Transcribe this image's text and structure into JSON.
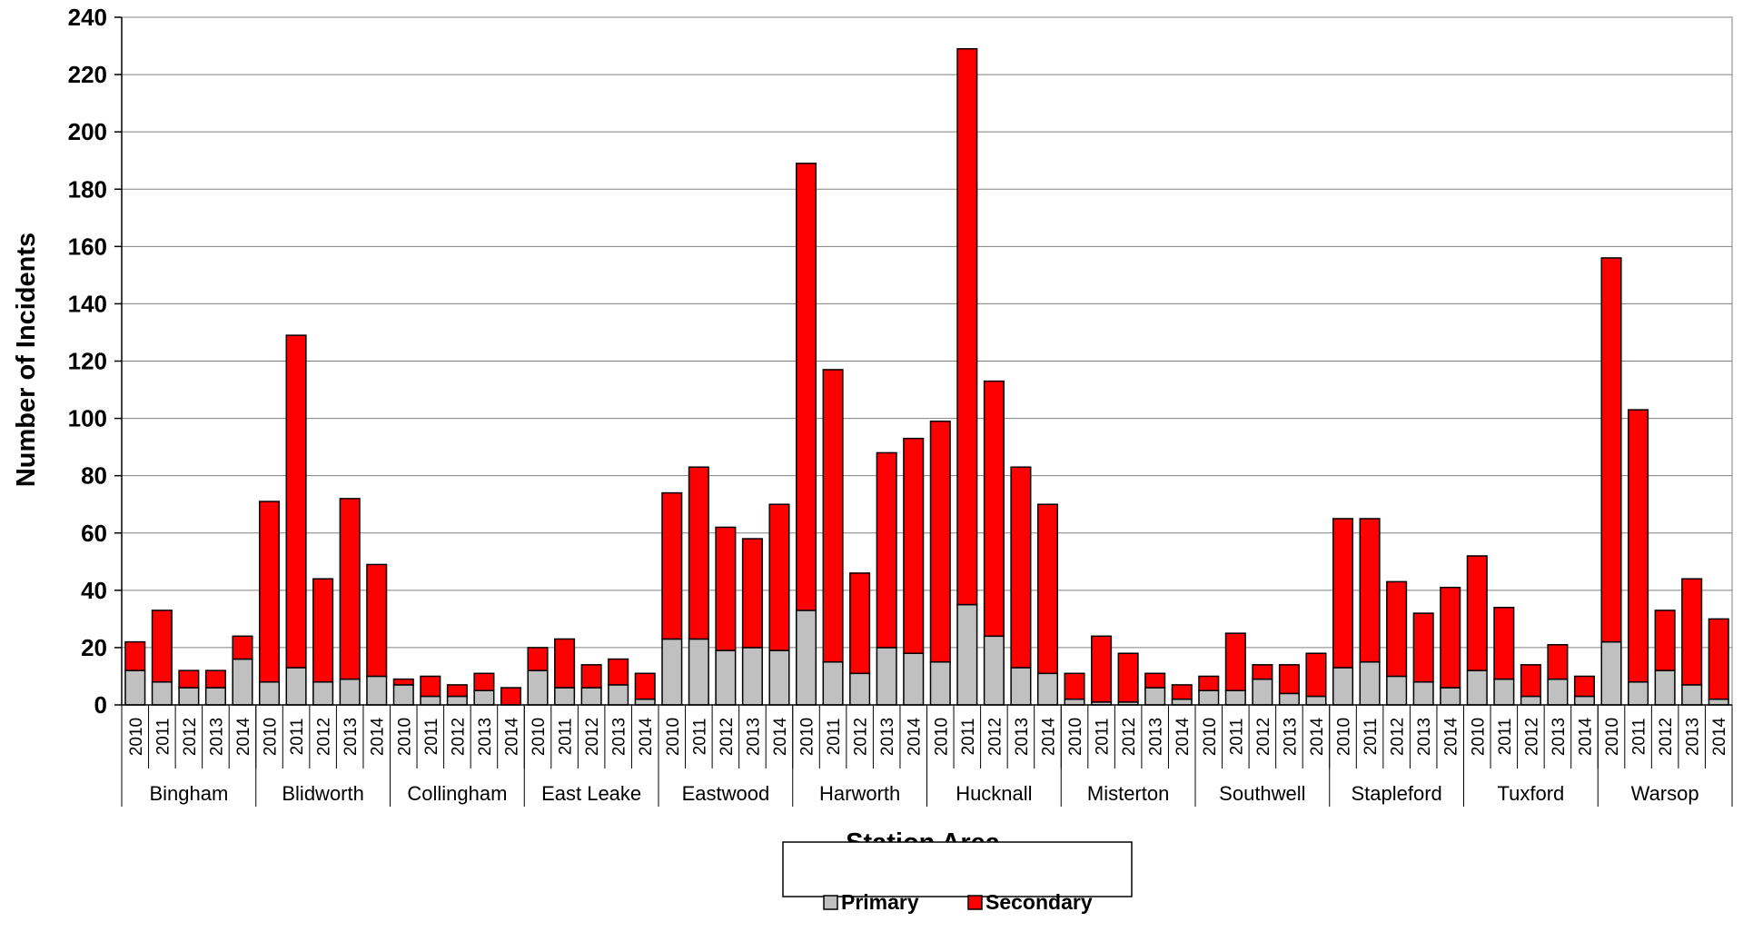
{
  "chart_data": {
    "type": "bar",
    "stacked": true,
    "title": "",
    "xlabel": "Station Area",
    "ylabel": "Number of Incidents",
    "ylim": [
      0,
      240
    ],
    "yticks": [
      0,
      20,
      40,
      60,
      80,
      100,
      120,
      140,
      160,
      180,
      200,
      220,
      240
    ],
    "grid": true,
    "legend_position": "bottom-center",
    "colors": {
      "Primary": "#C0C0C0",
      "Secondary": "#FF0000"
    },
    "groups": [
      {
        "name": "Bingham",
        "years": [
          "2010",
          "2011",
          "2012",
          "2013",
          "2014"
        ],
        "primary": [
          12,
          8,
          6,
          6,
          16
        ],
        "secondary": [
          10,
          25,
          6,
          6,
          8
        ]
      },
      {
        "name": "Blidworth",
        "years": [
          "2010",
          "2011",
          "2012",
          "2013",
          "2014"
        ],
        "primary": [
          8,
          13,
          8,
          9,
          10
        ],
        "secondary": [
          63,
          116,
          36,
          63,
          39
        ]
      },
      {
        "name": "Collingham",
        "years": [
          "2010",
          "2011",
          "2012",
          "2013",
          "2014"
        ],
        "primary": [
          7,
          3,
          3,
          5,
          0
        ],
        "secondary": [
          2,
          7,
          4,
          6,
          6
        ]
      },
      {
        "name": "East Leake",
        "years": [
          "2010",
          "2011",
          "2012",
          "2013",
          "2014"
        ],
        "primary": [
          12,
          6,
          6,
          7,
          2
        ],
        "secondary": [
          8,
          17,
          8,
          9,
          9
        ]
      },
      {
        "name": "Eastwood",
        "years": [
          "2010",
          "2011",
          "2012",
          "2013",
          "2014"
        ],
        "primary": [
          23,
          23,
          19,
          20,
          19
        ],
        "secondary": [
          51,
          60,
          43,
          38,
          51
        ]
      },
      {
        "name": "Harworth",
        "years": [
          "2010",
          "2011",
          "2012",
          "2013",
          "2014"
        ],
        "primary": [
          33,
          15,
          11,
          20,
          18
        ],
        "secondary": [
          156,
          102,
          35,
          68,
          75
        ]
      },
      {
        "name": "Hucknall",
        "years": [
          "2010",
          "2011",
          "2012",
          "2013",
          "2014"
        ],
        "primary": [
          15,
          35,
          24,
          13,
          11
        ],
        "secondary": [
          84,
          194,
          89,
          70,
          59
        ]
      },
      {
        "name": "Misterton",
        "years": [
          "2010",
          "2011",
          "2012",
          "2013",
          "2014"
        ],
        "primary": [
          2,
          1,
          1,
          6,
          2
        ],
        "secondary": [
          9,
          23,
          17,
          5,
          5
        ]
      },
      {
        "name": "Southwell",
        "years": [
          "2010",
          "2011",
          "2012",
          "2013",
          "2014"
        ],
        "primary": [
          5,
          5,
          9,
          4,
          3
        ],
        "secondary": [
          5,
          20,
          5,
          10,
          15
        ]
      },
      {
        "name": "Stapleford",
        "years": [
          "2010",
          "2011",
          "2012",
          "2013",
          "2014"
        ],
        "primary": [
          13,
          15,
          10,
          8,
          6
        ],
        "secondary": [
          52,
          50,
          33,
          24,
          35
        ]
      },
      {
        "name": "Tuxford",
        "years": [
          "2010",
          "2011",
          "2012",
          "2013",
          "2014"
        ],
        "primary": [
          12,
          9,
          3,
          9,
          3
        ],
        "secondary": [
          40,
          25,
          11,
          12,
          7
        ]
      },
      {
        "name": "Warsop",
        "years": [
          "2010",
          "2011",
          "2012",
          "2013",
          "2014"
        ],
        "primary": [
          22,
          8,
          12,
          7,
          2
        ],
        "secondary": [
          134,
          95,
          21,
          37,
          28
        ]
      }
    ]
  },
  "legend": {
    "primary_label": "Primary",
    "secondary_label": "Secondary"
  }
}
